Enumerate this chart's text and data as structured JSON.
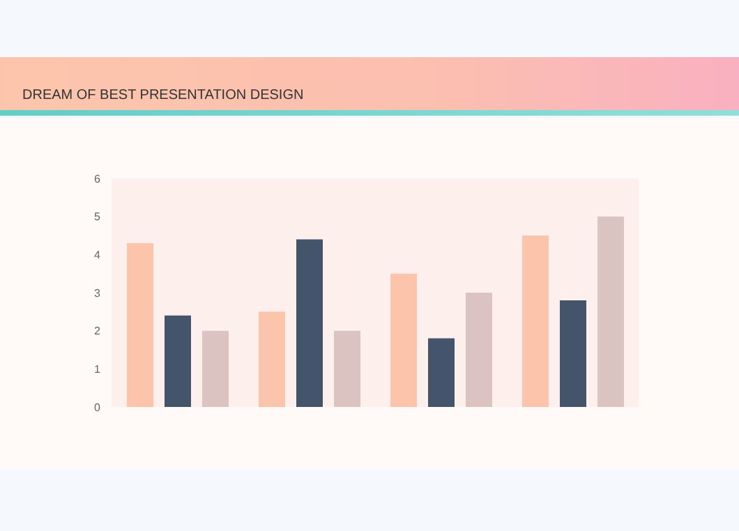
{
  "chart_data": {
    "type": "bar",
    "title": "DREAM OF BEST PRESENTATION DESIGN",
    "categories": [
      null,
      null,
      null,
      null
    ],
    "series": [
      {
        "color": "#fcc5ab",
        "values": [
          4.3,
          2.5,
          3.5,
          4.5
        ]
      },
      {
        "color": "#44546a",
        "values": [
          2.4,
          4.4,
          1.8,
          2.8
        ]
      },
      {
        "color": "#dbc3c1",
        "values": [
          2,
          2,
          3,
          5
        ]
      }
    ],
    "ylim": [
      0,
      6
    ],
    "yticks": [
      0,
      1,
      2,
      3,
      4,
      5,
      6
    ],
    "grid": false,
    "legend": false
  }
}
